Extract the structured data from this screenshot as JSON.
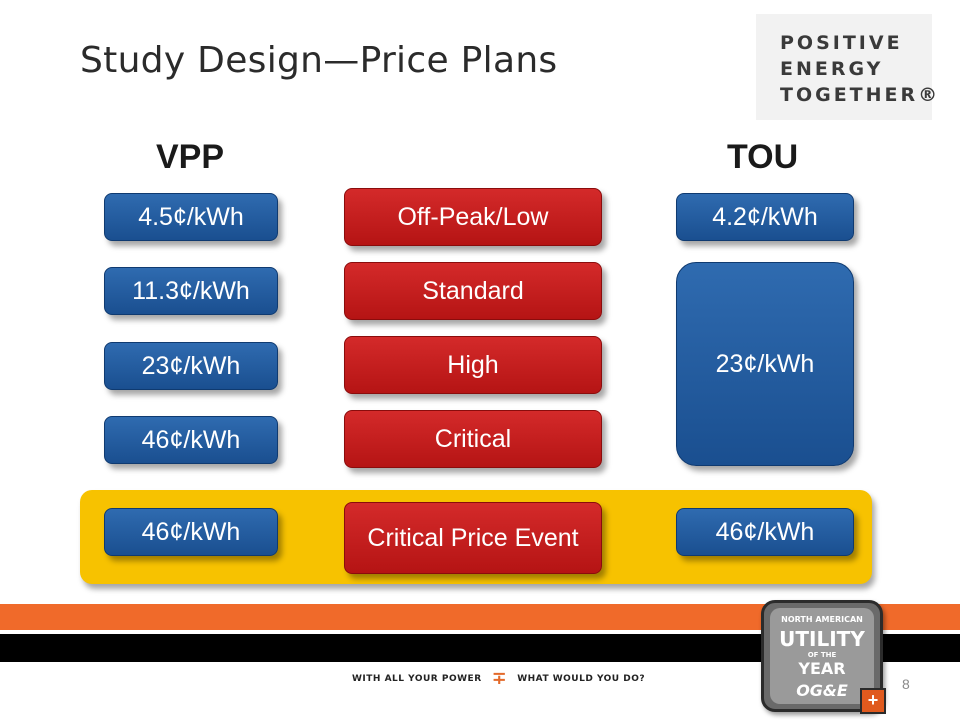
{
  "title": "Study Design—Price Plans",
  "logo": {
    "line1": "POSITIVE",
    "line2": "ENERGY",
    "line3": "TOGETHER®"
  },
  "vpp": {
    "header": "VPP",
    "prices": [
      "4.5¢/kWh",
      "11.3¢/kWh",
      "23¢/kWh",
      "46¢/kWh"
    ],
    "event_price": "46¢/kWh"
  },
  "levels": [
    "Off-Peak/Low",
    "Standard",
    "High",
    "Critical"
  ],
  "event_label": "Critical Price Event",
  "tou": {
    "header": "TOU",
    "prices": [
      "4.2¢/kWh",
      "23¢/kWh"
    ],
    "event_price": "46¢/kWh"
  },
  "footer": {
    "tagline_left": "WITH ALL YOUR POWER",
    "tagline_right": "WHAT WOULD YOU DO?",
    "award_line1": "NORTH AMERICAN",
    "award_line2": "UTILITY",
    "award_line3": "OF THE",
    "award_line4": "YEAR",
    "award_brand": "OG&E",
    "page_number": "8"
  },
  "colors": {
    "blue": "#1f5a9e",
    "red": "#c41c1c",
    "gold": "#f7c200",
    "orange": "#f06a2a"
  }
}
